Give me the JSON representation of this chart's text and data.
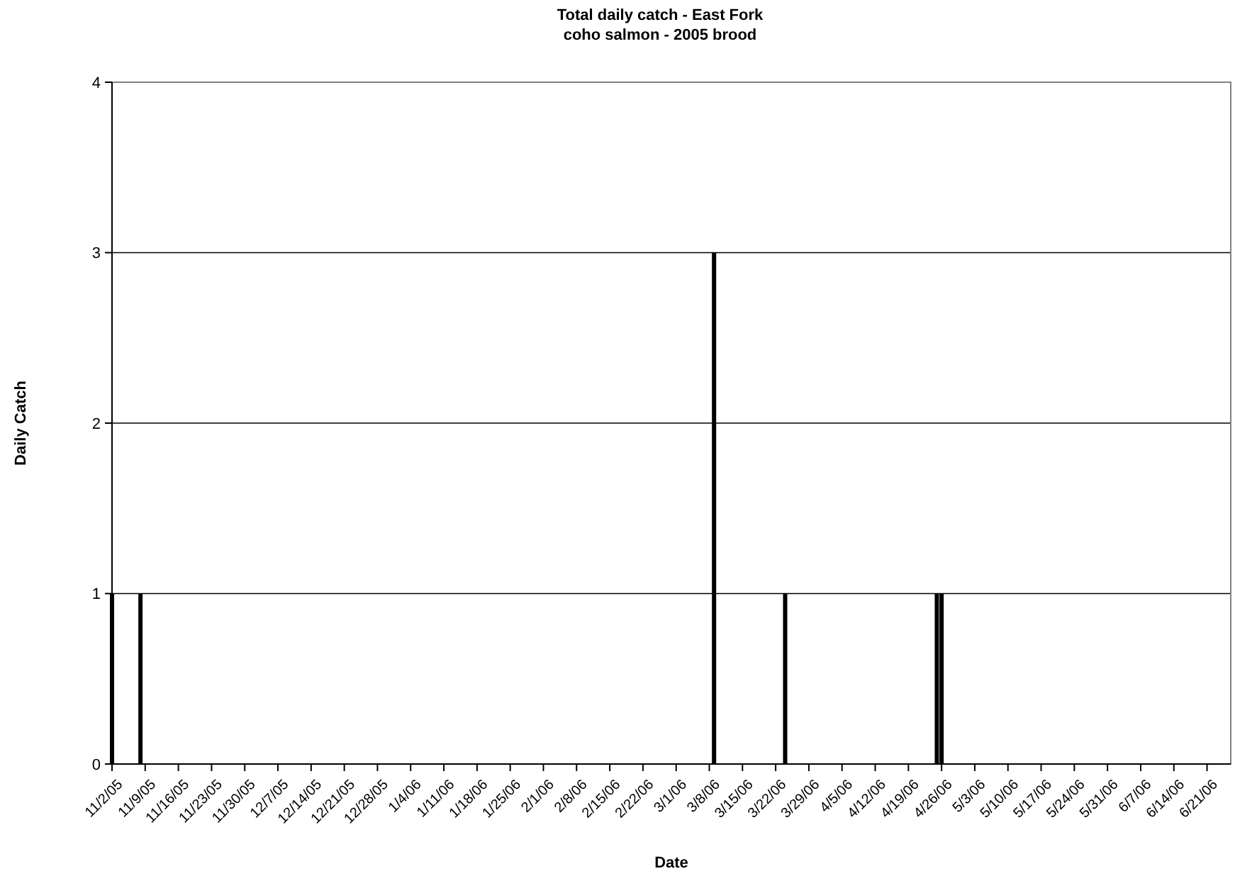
{
  "chart_data": {
    "type": "bar",
    "title": "Total daily catch - East Fork",
    "subtitle": "coho salmon - 2005 brood",
    "xlabel": "Date",
    "ylabel": "Daily Catch",
    "x": [
      "2005-11-02",
      "2005-11-08",
      "2006-03-09",
      "2006-03-24",
      "2006-04-25",
      "2006-04-26"
    ],
    "values": [
      1,
      1,
      3,
      1,
      1,
      1
    ],
    "color": "#000000",
    "xlim": [
      "2005-11-02",
      "2006-06-26"
    ],
    "xticks": [
      {
        "value": "2005-11-02",
        "label": "11/2/05"
      },
      {
        "value": "2005-11-09",
        "label": "11/9/05"
      },
      {
        "value": "2005-11-16",
        "label": "11/16/05"
      },
      {
        "value": "2005-11-23",
        "label": "11/23/05"
      },
      {
        "value": "2005-11-30",
        "label": "11/30/05"
      },
      {
        "value": "2005-12-07",
        "label": "12/7/05"
      },
      {
        "value": "2005-12-14",
        "label": "12/14/05"
      },
      {
        "value": "2005-12-21",
        "label": "12/21/05"
      },
      {
        "value": "2005-12-28",
        "label": "12/28/05"
      },
      {
        "value": "2006-01-04",
        "label": "1/4/06"
      },
      {
        "value": "2006-01-11",
        "label": "1/11/06"
      },
      {
        "value": "2006-01-18",
        "label": "1/18/06"
      },
      {
        "value": "2006-01-25",
        "label": "1/25/06"
      },
      {
        "value": "2006-02-01",
        "label": "2/1/06"
      },
      {
        "value": "2006-02-08",
        "label": "2/8/06"
      },
      {
        "value": "2006-02-15",
        "label": "2/15/06"
      },
      {
        "value": "2006-02-22",
        "label": "2/22/06"
      },
      {
        "value": "2006-03-01",
        "label": "3/1/06"
      },
      {
        "value": "2006-03-08",
        "label": "3/8/06"
      },
      {
        "value": "2006-03-15",
        "label": "3/15/06"
      },
      {
        "value": "2006-03-22",
        "label": "3/22/06"
      },
      {
        "value": "2006-03-29",
        "label": "3/29/06"
      },
      {
        "value": "2006-04-05",
        "label": "4/5/06"
      },
      {
        "value": "2006-04-12",
        "label": "4/12/06"
      },
      {
        "value": "2006-04-19",
        "label": "4/19/06"
      },
      {
        "value": "2006-04-26",
        "label": "4/26/06"
      },
      {
        "value": "2006-05-03",
        "label": "5/3/06"
      },
      {
        "value": "2006-05-10",
        "label": "5/10/06"
      },
      {
        "value": "2006-05-17",
        "label": "5/17/06"
      },
      {
        "value": "2006-05-24",
        "label": "5/24/06"
      },
      {
        "value": "2006-05-31",
        "label": "5/31/06"
      },
      {
        "value": "2006-06-07",
        "label": "6/7/06"
      },
      {
        "value": "2006-06-14",
        "label": "6/14/06"
      },
      {
        "value": "2006-06-21",
        "label": "6/21/06"
      }
    ],
    "ylim": [
      0,
      4
    ],
    "yticks": [
      0,
      1,
      2,
      3,
      4
    ],
    "grid": "y"
  }
}
